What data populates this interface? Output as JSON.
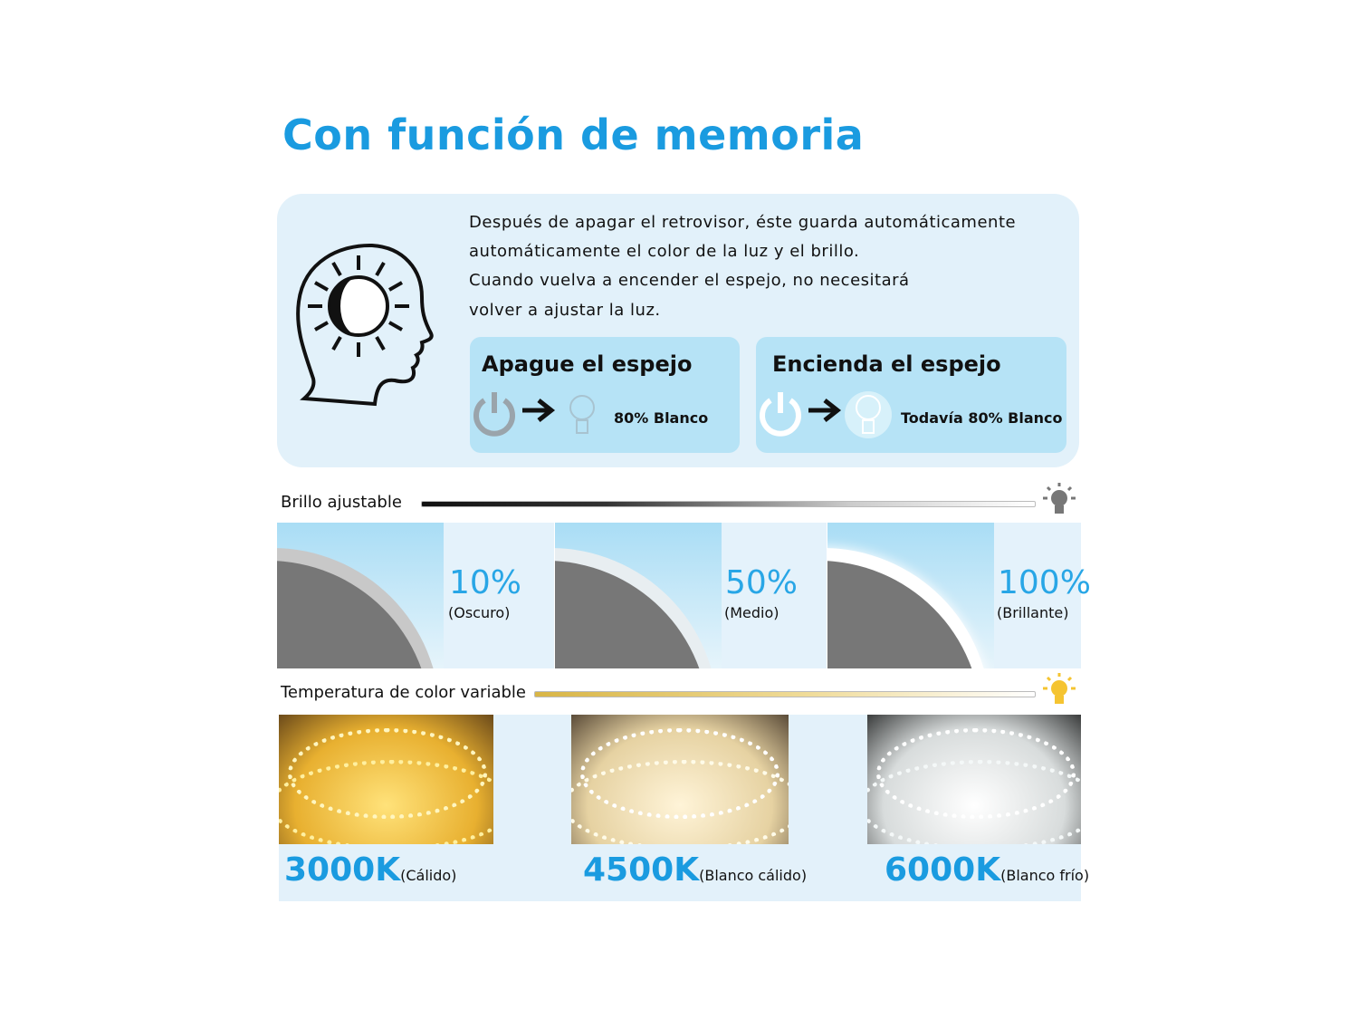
{
  "title": "Con función de memoria",
  "memory": {
    "description": [
      "Después de apagar el retrovisor, éste guarda automáticamente",
      "automáticamente el color de la luz y el brillo.",
      "Cuando vuelva a encender el espejo, no necesitará",
      "volver a ajustar la luz."
    ],
    "off": {
      "heading": "Apague el espejo",
      "result": "80% Blanco"
    },
    "on": {
      "heading": "Encienda el espejo",
      "result": "Todavía 80% Blanco"
    }
  },
  "brightness": {
    "label": "Brillo ajustable",
    "levels": [
      {
        "value": "10%",
        "desc": "(Oscuro)"
      },
      {
        "value": "50%",
        "desc": "(Medio)"
      },
      {
        "value": "100%",
        "desc": "(Brillante)"
      }
    ]
  },
  "temperature": {
    "label": "Temperatura de color variable",
    "options": [
      {
        "value": "3000K",
        "desc": "(Cálido)",
        "color": "#f7c545"
      },
      {
        "value": "4500K",
        "desc": "(Blanco cálido)",
        "color": "#f3e3b8"
      },
      {
        "value": "6000K",
        "desc": "(Blanco frío)",
        "color": "#eef3f4"
      }
    ]
  },
  "colors": {
    "accent": "#1a9be0",
    "panel": "#e2f1fa",
    "card": "#b6e3f6"
  }
}
